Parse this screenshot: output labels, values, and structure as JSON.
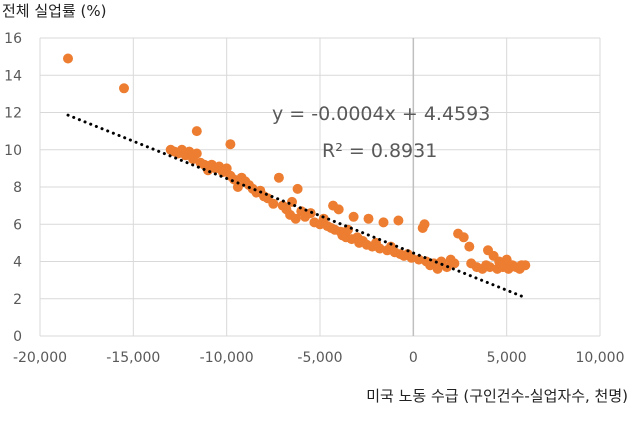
{
  "chart_data": {
    "type": "scatter",
    "ylabel": "전체 실업률 (%)",
    "xlabel": "미국 노동 수급 (구인건수-실업자수, 천명)",
    "xlim": [
      -20000,
      10000
    ],
    "ylim": [
      0,
      16
    ],
    "xticks": [
      -20000,
      -15000,
      -10000,
      -5000,
      0,
      5000,
      10000
    ],
    "xtick_labels": [
      "-20,000",
      "-15,000",
      "-10,000",
      "-5,000",
      "0",
      "5,000",
      "10,000"
    ],
    "yticks": [
      0,
      2,
      4,
      6,
      8,
      10,
      12,
      14,
      16
    ],
    "ytick_labels": [
      "0",
      "2",
      "4",
      "6",
      "8",
      "10",
      "12",
      "14",
      "16"
    ],
    "grid": true,
    "marker_color": "#ED7D31",
    "trendline": {
      "style": "dotted",
      "color": "#000000",
      "slope": -0.0004,
      "intercept": 4.4593,
      "x_range": [
        -18500,
        5800
      ],
      "equation_label": "y = -0.0004x + 4.4593",
      "r2_label": "R² = 0.8931"
    },
    "points": [
      [
        -18500,
        14.9
      ],
      [
        -15500,
        13.3
      ],
      [
        -13000,
        10.0
      ],
      [
        -12800,
        9.9
      ],
      [
        -12600,
        9.8
      ],
      [
        -12400,
        10.0
      ],
      [
        -12200,
        9.7
      ],
      [
        -12000,
        9.9
      ],
      [
        -11800,
        9.5
      ],
      [
        -11600,
        9.8
      ],
      [
        -11400,
        9.3
      ],
      [
        -11600,
        11.0
      ],
      [
        -11200,
        9.2
      ],
      [
        -11000,
        8.9
      ],
      [
        -10800,
        9.2
      ],
      [
        -10600,
        9.0
      ],
      [
        -10400,
        9.1
      ],
      [
        -10200,
        8.8
      ],
      [
        -10000,
        9.0
      ],
      [
        -9800,
        10.3
      ],
      [
        -9800,
        8.6
      ],
      [
        -9600,
        8.4
      ],
      [
        -9400,
        8.0
      ],
      [
        -9200,
        8.5
      ],
      [
        -9000,
        8.3
      ],
      [
        -8800,
        8.1
      ],
      [
        -8600,
        7.9
      ],
      [
        -8400,
        7.7
      ],
      [
        -8200,
        7.8
      ],
      [
        -8000,
        7.5
      ],
      [
        -7800,
        7.4
      ],
      [
        -7500,
        7.1
      ],
      [
        -7200,
        8.5
      ],
      [
        -7000,
        7.0
      ],
      [
        -6800,
        6.8
      ],
      [
        -6600,
        6.5
      ],
      [
        -6500,
        7.2
      ],
      [
        -6300,
        6.3
      ],
      [
        -6200,
        7.9
      ],
      [
        -6000,
        6.7
      ],
      [
        -5800,
        6.4
      ],
      [
        -5500,
        6.6
      ],
      [
        -5300,
        6.1
      ],
      [
        -5000,
        6.0
      ],
      [
        -4800,
        6.3
      ],
      [
        -4600,
        5.9
      ],
      [
        -4400,
        5.8
      ],
      [
        -4300,
        7.0
      ],
      [
        -4200,
        5.7
      ],
      [
        -4000,
        6.8
      ],
      [
        -3900,
        5.6
      ],
      [
        -3800,
        5.4
      ],
      [
        -3600,
        5.3
      ],
      [
        -3500,
        5.7
      ],
      [
        -3300,
        5.2
      ],
      [
        -3200,
        6.4
      ],
      [
        -3000,
        5.3
      ],
      [
        -2900,
        5.0
      ],
      [
        -2700,
        5.1
      ],
      [
        -2500,
        4.9
      ],
      [
        -2400,
        6.3
      ],
      [
        -2200,
        4.8
      ],
      [
        -2000,
        5.0
      ],
      [
        -1800,
        4.7
      ],
      [
        -1600,
        6.1
      ],
      [
        -1400,
        4.6
      ],
      [
        -1200,
        4.8
      ],
      [
        -1000,
        4.5
      ],
      [
        -800,
        6.2
      ],
      [
        -700,
        4.4
      ],
      [
        -500,
        4.3
      ],
      [
        -300,
        4.4
      ],
      [
        -100,
        4.2
      ],
      [
        300,
        4.1
      ],
      [
        500,
        5.8
      ],
      [
        600,
        6.0
      ],
      [
        700,
        4.0
      ],
      [
        900,
        3.8
      ],
      [
        1100,
        3.9
      ],
      [
        1300,
        3.6
      ],
      [
        1500,
        4.0
      ],
      [
        1800,
        3.7
      ],
      [
        2000,
        4.1
      ],
      [
        2200,
        3.9
      ],
      [
        2400,
        5.5
      ],
      [
        2700,
        5.3
      ],
      [
        3000,
        4.8
      ],
      [
        3100,
        3.9
      ],
      [
        3400,
        3.7
      ],
      [
        3700,
        3.6
      ],
      [
        3900,
        3.8
      ],
      [
        4000,
        4.6
      ],
      [
        4100,
        3.7
      ],
      [
        4300,
        4.3
      ],
      [
        4500,
        3.6
      ],
      [
        4600,
        4.0
      ],
      [
        4800,
        3.7
      ],
      [
        5000,
        4.1
      ],
      [
        5100,
        3.6
      ],
      [
        5300,
        3.8
      ],
      [
        5500,
        3.7
      ],
      [
        5700,
        3.6
      ],
      [
        5800,
        3.8
      ],
      [
        6000,
        3.8
      ]
    ]
  }
}
